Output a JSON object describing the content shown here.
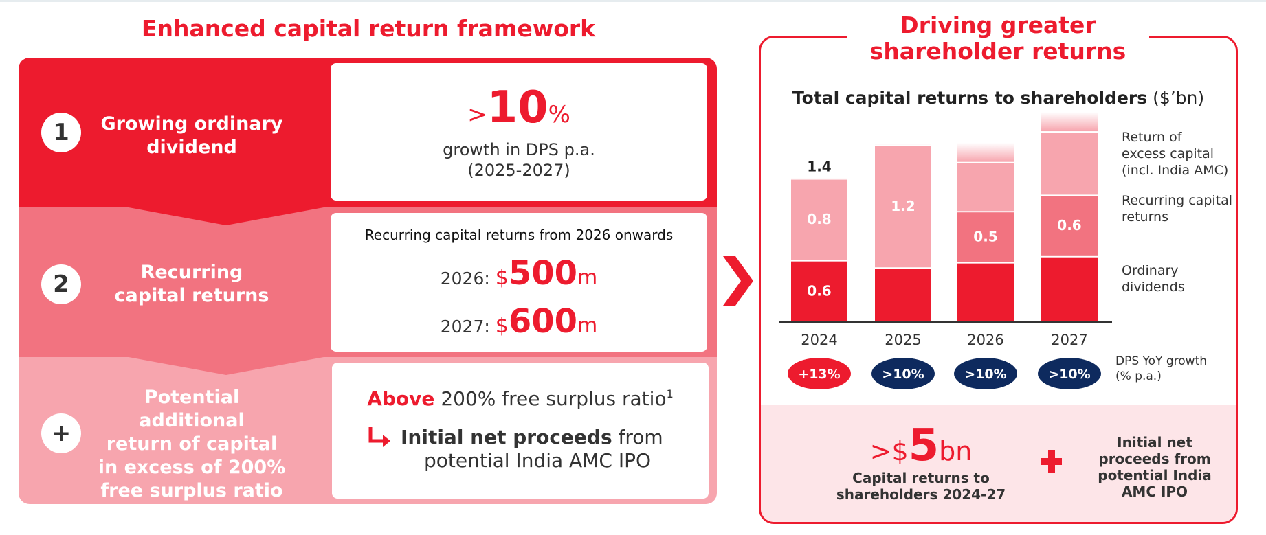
{
  "left": {
    "title": "Enhanced capital return framework",
    "items": [
      {
        "badge": "1",
        "label_lines": [
          "Growing ordinary",
          "dividend"
        ]
      },
      {
        "badge": "2",
        "label_lines": [
          "Recurring",
          "capital returns"
        ]
      },
      {
        "badge": "+",
        "label_lines": [
          "Potential additional",
          "return of capital",
          "in excess of 200%",
          "free surplus ratio"
        ]
      }
    ],
    "card1": {
      "prefix": ">",
      "value": "10",
      "unit": "%",
      "line1": "growth in DPS p.a.",
      "line2": "(2025-2027)"
    },
    "card2": {
      "heading": "Recurring capital returns from 2026 onwards",
      "rows": [
        {
          "year": "2026: ",
          "currency": "$",
          "value": "500",
          "unit": "m"
        },
        {
          "year": "2027: ",
          "currency": "$",
          "value": "600",
          "unit": "m"
        }
      ]
    },
    "card3": {
      "above": "Above",
      "ratio_text": " 200% free surplus ratio",
      "footnote": "1",
      "proceeds_bold": "Initial net proceeds",
      "proceeds_rest": " from",
      "line3": "potential India AMC IPO"
    }
  },
  "right": {
    "title_lines": [
      "Driving greater",
      "shareholder returns"
    ],
    "chart_title": "Total capital returns to shareholders",
    "chart_unit": "($’bn)",
    "growth_label_lines": [
      "DPS YoY growth",
      "(% p.a.)"
    ],
    "footer": {
      "prefix": ">$",
      "value": "5",
      "unit": "bn",
      "caption_lines": [
        "Capital returns to",
        "shareholders 2024-27"
      ],
      "plus": "+",
      "right_lines": [
        "Initial net",
        "proceeds from",
        "potential India",
        "AMC IPO"
      ]
    }
  },
  "colors": {
    "red": "#ed1b2e",
    "mid_pink": "#f27380",
    "light_pink": "#f7a5ae",
    "navy": "#0e2a5e"
  },
  "chart_data": {
    "type": "bar",
    "stacked": true,
    "categories": [
      "2024",
      "2025",
      "2026",
      "2027"
    ],
    "series": [
      {
        "name": "Ordinary dividends",
        "values": [
          0.6,
          0.53,
          0.58,
          0.64
        ],
        "labels": [
          "0.6",
          "",
          "",
          ""
        ],
        "color": "#ed1b2e"
      },
      {
        "name": "Recurring capital returns",
        "values": [
          0,
          0,
          0.5,
          0.6
        ],
        "labels": [
          "",
          "",
          "0.5",
          "0.6"
        ],
        "color": "#f27380"
      },
      {
        "name": "Return of excess capital (incl. India AMC)",
        "values": [
          0.8,
          1.2,
          0.48,
          0.62
        ],
        "labels": [
          "0.8",
          "1.2",
          "",
          ""
        ],
        "color": "#f7a5ae",
        "faded_top": [
          false,
          false,
          true,
          true
        ]
      }
    ],
    "totals": [
      "1.4",
      "",
      "",
      ""
    ],
    "legend_lines": [
      [
        "Return of",
        "excess capital",
        "(incl. India AMC)"
      ],
      [
        "Recurring capital",
        "returns"
      ],
      [
        "Ordinary",
        "dividends"
      ]
    ],
    "dps_growth": [
      {
        "label": "+13%",
        "color": "#ed1b2e"
      },
      {
        "label": ">10%",
        "color": "#0e2a5e"
      },
      {
        "label": ">10%",
        "color": "#0e2a5e"
      },
      {
        "label": ">10%",
        "color": "#0e2a5e"
      }
    ],
    "ylim": [
      0,
      1.8
    ]
  }
}
